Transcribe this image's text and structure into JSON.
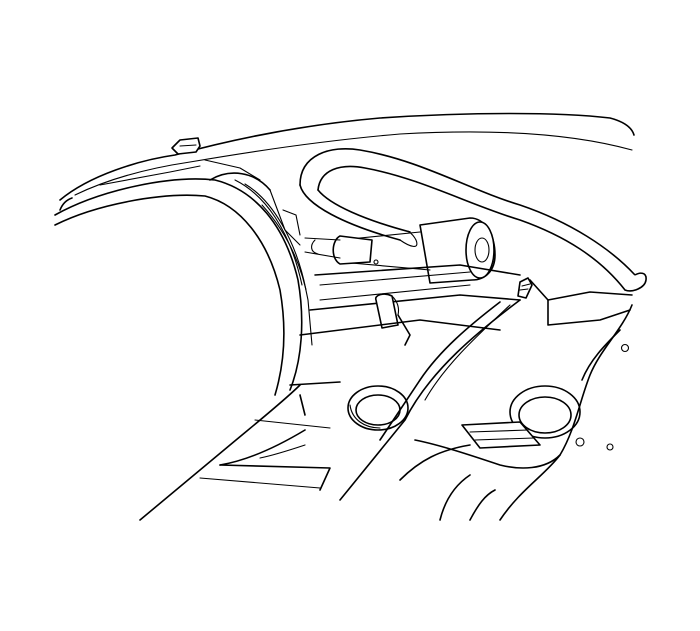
{
  "figure": {
    "labels": [],
    "colors": {
      "line": "#000000",
      "background": "#ffffff"
    }
  }
}
